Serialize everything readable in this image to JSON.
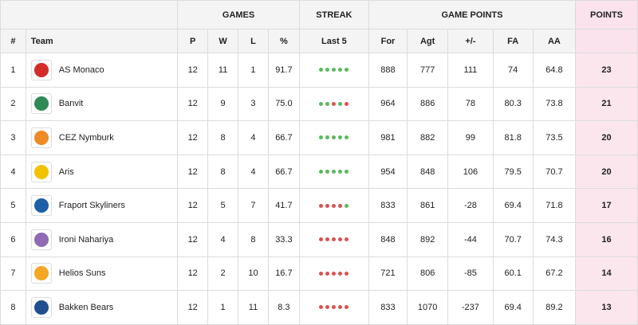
{
  "headers": {
    "group_games": "GAMES",
    "group_streak": "STREAK",
    "group_game_points": "GAME POINTS",
    "group_points": "POINTS",
    "col_rank": "#",
    "col_team": "Team",
    "col_p": "P",
    "col_w": "W",
    "col_l": "L",
    "col_pct": "%",
    "col_last5": "Last 5",
    "col_for": "For",
    "col_agt": "Agt",
    "col_diff": "+/-",
    "col_fa": "FA",
    "col_aa": "AA"
  },
  "colors": {
    "win": "#5cb85c",
    "loss": "#d9534f",
    "points_bg": "#fbe6ee"
  },
  "rows": [
    {
      "rank": "1",
      "team": "AS Monaco",
      "logo_icon": "as-monaco-logo-icon",
      "logo_color": "#d62b2b",
      "p": "12",
      "w": "11",
      "l": "1",
      "pct": "91.7",
      "streak": [
        "W",
        "W",
        "W",
        "W",
        "W"
      ],
      "for": "888",
      "agt": "777",
      "diff": "111",
      "fa": "74",
      "aa": "64.8",
      "points": "23"
    },
    {
      "rank": "2",
      "team": "Banvit",
      "logo_icon": "banvit-logo-icon",
      "logo_color": "#2e8b57",
      "p": "12",
      "w": "9",
      "l": "3",
      "pct": "75.0",
      "streak": [
        "W",
        "W",
        "L",
        "W",
        "L"
      ],
      "for": "964",
      "agt": "886",
      "diff": "78",
      "fa": "80.3",
      "aa": "73.8",
      "points": "21"
    },
    {
      "rank": "3",
      "team": "CEZ Nymburk",
      "logo_icon": "cez-nymburk-logo-icon",
      "logo_color": "#f08a24",
      "p": "12",
      "w": "8",
      "l": "4",
      "pct": "66.7",
      "streak": [
        "W",
        "W",
        "W",
        "W",
        "W"
      ],
      "for": "981",
      "agt": "882",
      "diff": "99",
      "fa": "81.8",
      "aa": "73.5",
      "points": "20"
    },
    {
      "rank": "4",
      "team": "Aris",
      "logo_icon": "aris-logo-icon",
      "logo_color": "#f2c200",
      "p": "12",
      "w": "8",
      "l": "4",
      "pct": "66.7",
      "streak": [
        "W",
        "W",
        "W",
        "W",
        "W"
      ],
      "for": "954",
      "agt": "848",
      "diff": "106",
      "fa": "79.5",
      "aa": "70.7",
      "points": "20"
    },
    {
      "rank": "5",
      "team": "Fraport Skyliners",
      "logo_icon": "fraport-skyliners-logo-icon",
      "logo_color": "#1e5fa8",
      "p": "12",
      "w": "5",
      "l": "7",
      "pct": "41.7",
      "streak": [
        "L",
        "L",
        "L",
        "L",
        "W"
      ],
      "for": "833",
      "agt": "861",
      "diff": "-28",
      "fa": "69.4",
      "aa": "71.8",
      "points": "17"
    },
    {
      "rank": "6",
      "team": "Ironi Nahariya",
      "logo_icon": "ironi-nahariya-logo-icon",
      "logo_color": "#8e6bb3",
      "p": "12",
      "w": "4",
      "l": "8",
      "pct": "33.3",
      "streak": [
        "L",
        "L",
        "L",
        "L",
        "L"
      ],
      "for": "848",
      "agt": "892",
      "diff": "-44",
      "fa": "70.7",
      "aa": "74.3",
      "points": "16"
    },
    {
      "rank": "7",
      "team": "Helios Suns",
      "logo_icon": "helios-suns-logo-icon",
      "logo_color": "#f5a623",
      "p": "12",
      "w": "2",
      "l": "10",
      "pct": "16.7",
      "streak": [
        "L",
        "L",
        "L",
        "L",
        "L"
      ],
      "for": "721",
      "agt": "806",
      "diff": "-85",
      "fa": "60.1",
      "aa": "67.2",
      "points": "14"
    },
    {
      "rank": "8",
      "team": "Bakken Bears",
      "logo_icon": "bakken-bears-logo-icon",
      "logo_color": "#1f4f8f",
      "p": "12",
      "w": "1",
      "l": "11",
      "pct": "8.3",
      "streak": [
        "L",
        "L",
        "L",
        "L",
        "L"
      ],
      "for": "833",
      "agt": "1070",
      "diff": "-237",
      "fa": "69.4",
      "aa": "89.2",
      "points": "13"
    }
  ]
}
